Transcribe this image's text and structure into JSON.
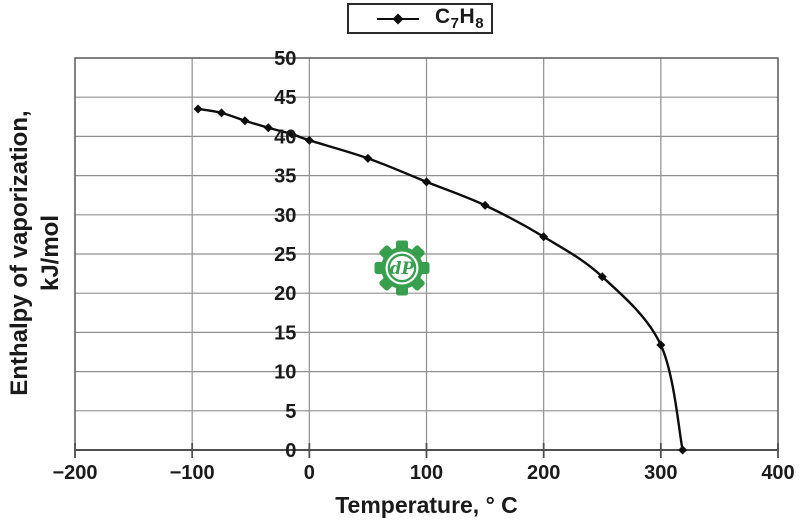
{
  "legend": {
    "parts": {
      "c": "C",
      "n7": "7",
      "h": "H",
      "n8": "8"
    },
    "series_label_plain": "C7H8"
  },
  "axes": {
    "x_title": "Temperature, ° C",
    "y_title_line1": "Enthalpy of vaporization,",
    "y_title_line2": "kJ/mol"
  },
  "watermark": {
    "monogram": "dP",
    "color": "#2e9a46"
  },
  "colors": {
    "curve": "#0d0d0d",
    "grid": "#8f8f8f",
    "plot_border": "#606060",
    "axis": "#4f4f4f",
    "text": "#1a1a1a",
    "background": "#ffffff"
  },
  "chart_data": {
    "type": "line",
    "title": "",
    "series": [
      {
        "name": "C7H8",
        "marker": "diamond",
        "x": [
          -95,
          -75,
          -55,
          -35,
          -15,
          0,
          50,
          100,
          150,
          200,
          250,
          300,
          318.6
        ],
        "y": [
          43.5,
          43.0,
          42.0,
          41.1,
          40.3,
          39.5,
          37.2,
          34.2,
          31.2,
          27.2,
          22.1,
          13.4,
          0
        ]
      }
    ],
    "xlabel": "Temperature, ° C",
    "ylabel": "Enthalpy of vaporization, kJ/mol",
    "xlim": [
      -200,
      400
    ],
    "ylim": [
      0,
      50
    ],
    "x_ticks": [
      -200,
      -100,
      0,
      100,
      200,
      300,
      400
    ],
    "x_tick_labels": [
      "−200",
      "−100",
      "0",
      "100",
      "200",
      "300",
      "400"
    ],
    "y_ticks": [
      0,
      5,
      10,
      15,
      20,
      25,
      30,
      35,
      40,
      45,
      50
    ],
    "y_tick_labels": [
      "0",
      "5",
      "10",
      "15",
      "20",
      "25",
      "30",
      "35",
      "40",
      "45",
      "50"
    ],
    "grid": true,
    "legend_position": "top-center",
    "y_axis_labels_at_x": 0,
    "notes": "smooth line with diamond markers; y tick labels drawn inside plot left of x=0 gridline"
  }
}
